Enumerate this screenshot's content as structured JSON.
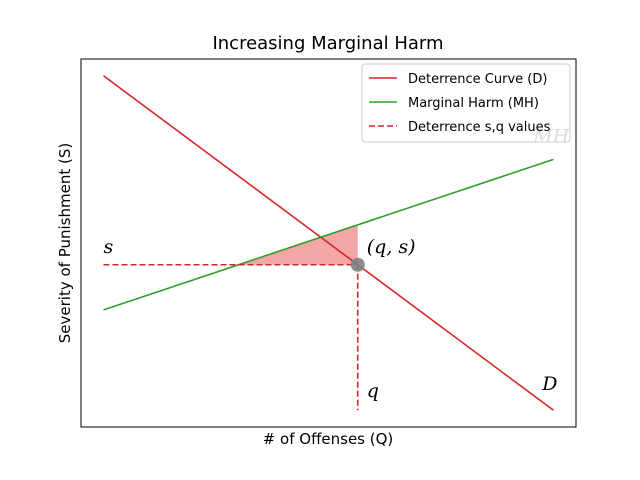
{
  "chart_data": {
    "type": "line",
    "title": "Increasing Marginal Harm",
    "xlabel": "# of Offenses (Q)",
    "ylabel": "Severity of Punishment (S)",
    "xlim": [
      -0.05,
      1.05
    ],
    "ylim": [
      -0.05,
      1.05
    ],
    "ticks_visible": false,
    "grid": false,
    "legend": "top-right",
    "series": [
      {
        "name": "Deterrence Curve (D)",
        "color": "#d62728",
        "style": "solid",
        "x": [
          0,
          1
        ],
        "y": [
          1,
          0
        ]
      },
      {
        "name": "Marginal Harm (MH)",
        "color": "#2ca02c",
        "style": "solid",
        "x": [
          0,
          1
        ],
        "y": [
          0.3,
          0.75
        ]
      },
      {
        "name": "Deterrence s,q values",
        "color": "#d62728",
        "style": "dashed"
      }
    ],
    "equilibrium": {
      "q": 0.565,
      "s": 0.435
    },
    "shaded_region": {
      "color": "#f08080",
      "x": [
        0.3,
        0.565,
        0.565
      ],
      "y": [
        0.435,
        0.5543,
        0.435
      ]
    },
    "annotations": [
      {
        "text": "s",
        "x": 0.0,
        "y": 0.47
      },
      {
        "text": "(q, s)",
        "x": 0.585,
        "y": 0.47
      },
      {
        "text": "q",
        "x": 0.585,
        "y": 0.04
      },
      {
        "text": "D",
        "x": 0.975,
        "y": 0.06
      },
      {
        "text": "MH",
        "x": 0.955,
        "y": 0.8
      }
    ]
  }
}
